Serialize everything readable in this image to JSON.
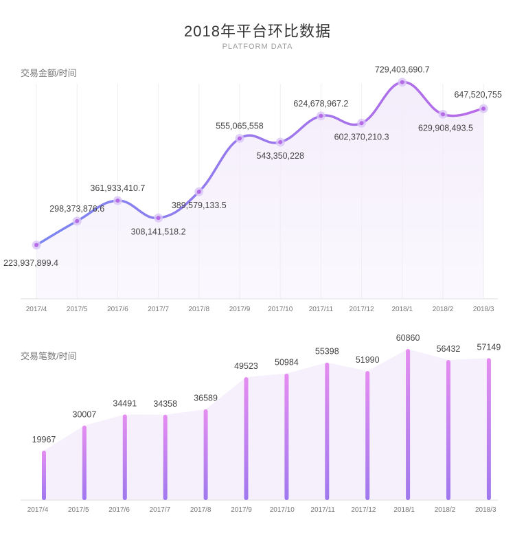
{
  "header": {
    "title": "2018年平台环比数据",
    "subtitle": "PLATFORM DATA"
  },
  "colors": {
    "line_start": "#7b86f0",
    "line_end": "#b96ae8",
    "bar_top": "#e58df0",
    "bar_bottom": "#9f78ee",
    "area_fill": "#f3ecfb",
    "grid": "#eeeeee",
    "axis": "#dddddd"
  },
  "chart_data": [
    {
      "type": "line",
      "ylabel": "交易金额/时间",
      "categories": [
        "2017/4",
        "2017/5",
        "2017/6",
        "2017/7",
        "2017/8",
        "2017/9",
        "2017/10",
        "2017/11",
        "2017/12",
        "2018/1",
        "2018/2",
        "2018/3"
      ],
      "values": [
        223937899.4,
        298373876.6,
        361933410.7,
        308141518.2,
        389579133.5,
        555065558,
        543350228,
        624678967.2,
        602370210.3,
        729403690.7,
        629908493.5,
        647520755
      ],
      "labels": [
        "223,937,899.4",
        "298,373,876.6",
        "361,933,410.7",
        "308,141,518.2",
        "389,579,133.5",
        "555,065,558",
        "543,350,228",
        "624,678,967.2",
        "602,370,210.3",
        "729,403,690.7",
        "629,908,493.5",
        "647,520,755"
      ],
      "grid": "vertical"
    },
    {
      "type": "bar",
      "ylabel": "交易笔数/时间",
      "categories": [
        "2017/4",
        "2017/5",
        "2017/6",
        "2017/7",
        "2017/8",
        "2017/9",
        "2017/10",
        "2017/11",
        "2017/12",
        "2018/1",
        "2018/2",
        "2018/3"
      ],
      "values": [
        19967,
        30007,
        34491,
        34358,
        36589,
        49523,
        50984,
        55398,
        51990,
        60860,
        56432,
        57149
      ],
      "labels": [
        "19967",
        "30007",
        "34491",
        "34358",
        "36589",
        "49523",
        "50984",
        "55398",
        "51990",
        "60860",
        "56432",
        "57149"
      ],
      "grid": "none"
    }
  ]
}
